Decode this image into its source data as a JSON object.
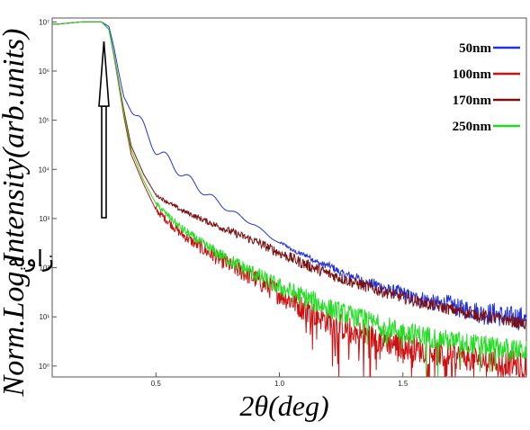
{
  "chart_data": {
    "type": "line",
    "xlabel": "2θ(deg)",
    "ylabel": "Norm.Log Intensity(arb.units)",
    "yscale": "log",
    "xlim": [
      0.08,
      2.0
    ],
    "ylim": [
      0.6,
      12000000
    ],
    "x_ticks": [
      {
        "value": 0.5,
        "label": "0.5"
      },
      {
        "value": 1.0,
        "label": "1.0"
      },
      {
        "value": 1.5,
        "label": "1.5"
      }
    ],
    "y_ticks": [
      {
        "value": 1,
        "label": "10⁰"
      },
      {
        "value": 10,
        "label": "10¹"
      },
      {
        "value": 100,
        "label": "10²"
      },
      {
        "value": 1000,
        "label": "10³"
      },
      {
        "value": 10000,
        "label": "10⁴"
      },
      {
        "value": 100000,
        "label": "10⁵"
      },
      {
        "value": 1000000,
        "label": "10⁶"
      },
      {
        "value": 10000000,
        "label": "10⁷"
      }
    ],
    "legend_position": "top-right",
    "grid": false,
    "series": [
      {
        "name": "50nm",
        "color": "#2233dd",
        "x": [
          0.1,
          0.2,
          0.28,
          0.31,
          0.33,
          0.35,
          0.37,
          0.4,
          0.43,
          0.46,
          0.5,
          0.55,
          0.6,
          0.7,
          0.8,
          0.9,
          1.0,
          1.1,
          1.2,
          1.3,
          1.4,
          1.5,
          1.6,
          1.7,
          1.8,
          1.9,
          2.0
        ],
        "y": [
          9000000,
          10000000,
          10000000,
          8000000,
          3000000,
          900000,
          300000,
          150000,
          80000,
          40000,
          20000,
          12000,
          7000,
          2800,
          1300,
          700,
          300,
          170,
          100,
          60,
          40,
          28,
          20,
          16,
          12,
          10,
          8
        ],
        "fringe_amplitude": 0.28
      },
      {
        "name": "100nm",
        "color": "#cc1111",
        "x": [
          0.1,
          0.2,
          0.28,
          0.31,
          0.33,
          0.35,
          0.37,
          0.4,
          0.45,
          0.5,
          0.6,
          0.7,
          0.8,
          0.9,
          1.0,
          1.1,
          1.2,
          1.3,
          1.4,
          1.5,
          1.6,
          1.7,
          1.8,
          1.9,
          2.0
        ],
        "y": [
          9000000,
          10000000,
          10000000,
          7000000,
          2000000,
          500000,
          120000,
          20000,
          5000,
          1500,
          500,
          220,
          110,
          60,
          30,
          15,
          8,
          5,
          3.5,
          2.5,
          2,
          1.6,
          1.4,
          1.2,
          1
        ],
        "noise": 0.2
      },
      {
        "name": "170nm",
        "color": "#7a1010",
        "x": [
          0.1,
          0.2,
          0.28,
          0.31,
          0.33,
          0.35,
          0.37,
          0.4,
          0.45,
          0.5,
          0.6,
          0.7,
          0.8,
          0.9,
          1.0,
          1.1,
          1.2,
          1.3,
          1.4,
          1.5,
          1.6,
          1.7,
          1.8,
          1.9,
          2.0
        ],
        "y": [
          9000000,
          10000000,
          10000000,
          7000000,
          2200000,
          600000,
          160000,
          30000,
          8000,
          3000,
          1500,
          900,
          550,
          350,
          200,
          120,
          75,
          50,
          35,
          25,
          18,
          14,
          11,
          9,
          7
        ],
        "noise": 0.09
      },
      {
        "name": "250nm",
        "color": "#22dd22",
        "x": [
          0.1,
          0.2,
          0.28,
          0.31,
          0.33,
          0.35,
          0.37,
          0.4,
          0.45,
          0.5,
          0.6,
          0.7,
          0.8,
          0.9,
          1.0,
          1.1,
          1.2,
          1.3,
          1.4,
          1.5,
          1.6,
          1.7,
          1.8,
          1.9,
          2.0
        ],
        "y": [
          9000000,
          10000000,
          10000000,
          7000000,
          2100000,
          550000,
          140000,
          25000,
          6000,
          2000,
          650,
          280,
          140,
          75,
          40,
          25,
          15,
          10,
          7,
          5,
          4,
          3.2,
          2.7,
          2.3,
          2
        ],
        "noise": 0.16
      }
    ],
    "annotations": [
      {
        "text": "زاویه بحرانی",
        "x": 0.31,
        "y": 40000000,
        "arrow": true
      }
    ]
  }
}
